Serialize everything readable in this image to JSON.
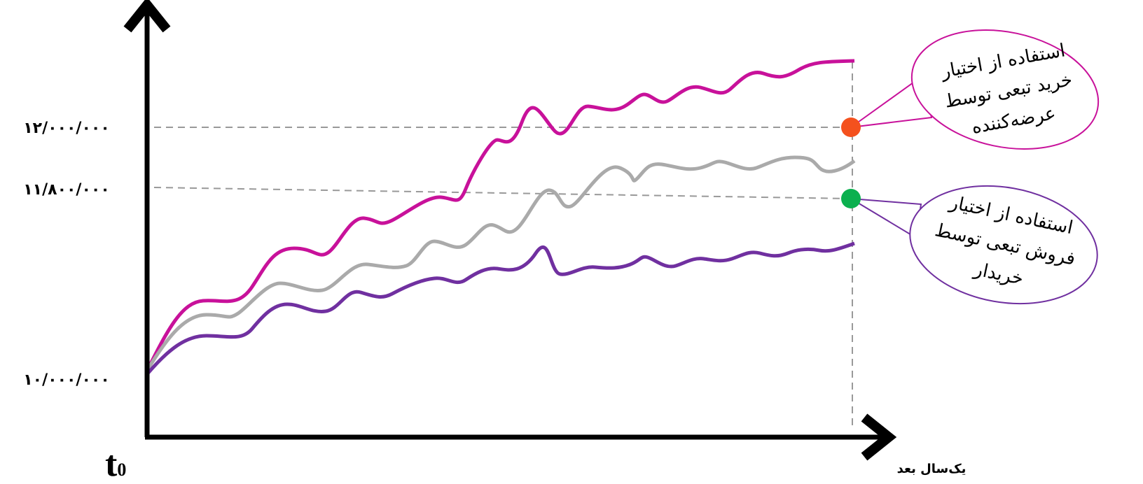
{
  "y_labels": [
    "۱۲/۰۰۰/۰۰۰",
    "۱۱/۸۰۰/۰۰۰",
    "۱۰/۰۰۰/۰۰۰"
  ],
  "origin": {
    "main": "t",
    "sub": "0"
  },
  "x_end": "یک‌سال بعد",
  "callouts": [
    {
      "lines": [
        "استفاده از اختیار",
        "خرید تبعی توسط",
        "عرضه‌کننده"
      ]
    },
    {
      "lines": [
        "استفاده از اختیار",
        "فروش تبعی توسط",
        "خریدار"
      ]
    }
  ]
}
